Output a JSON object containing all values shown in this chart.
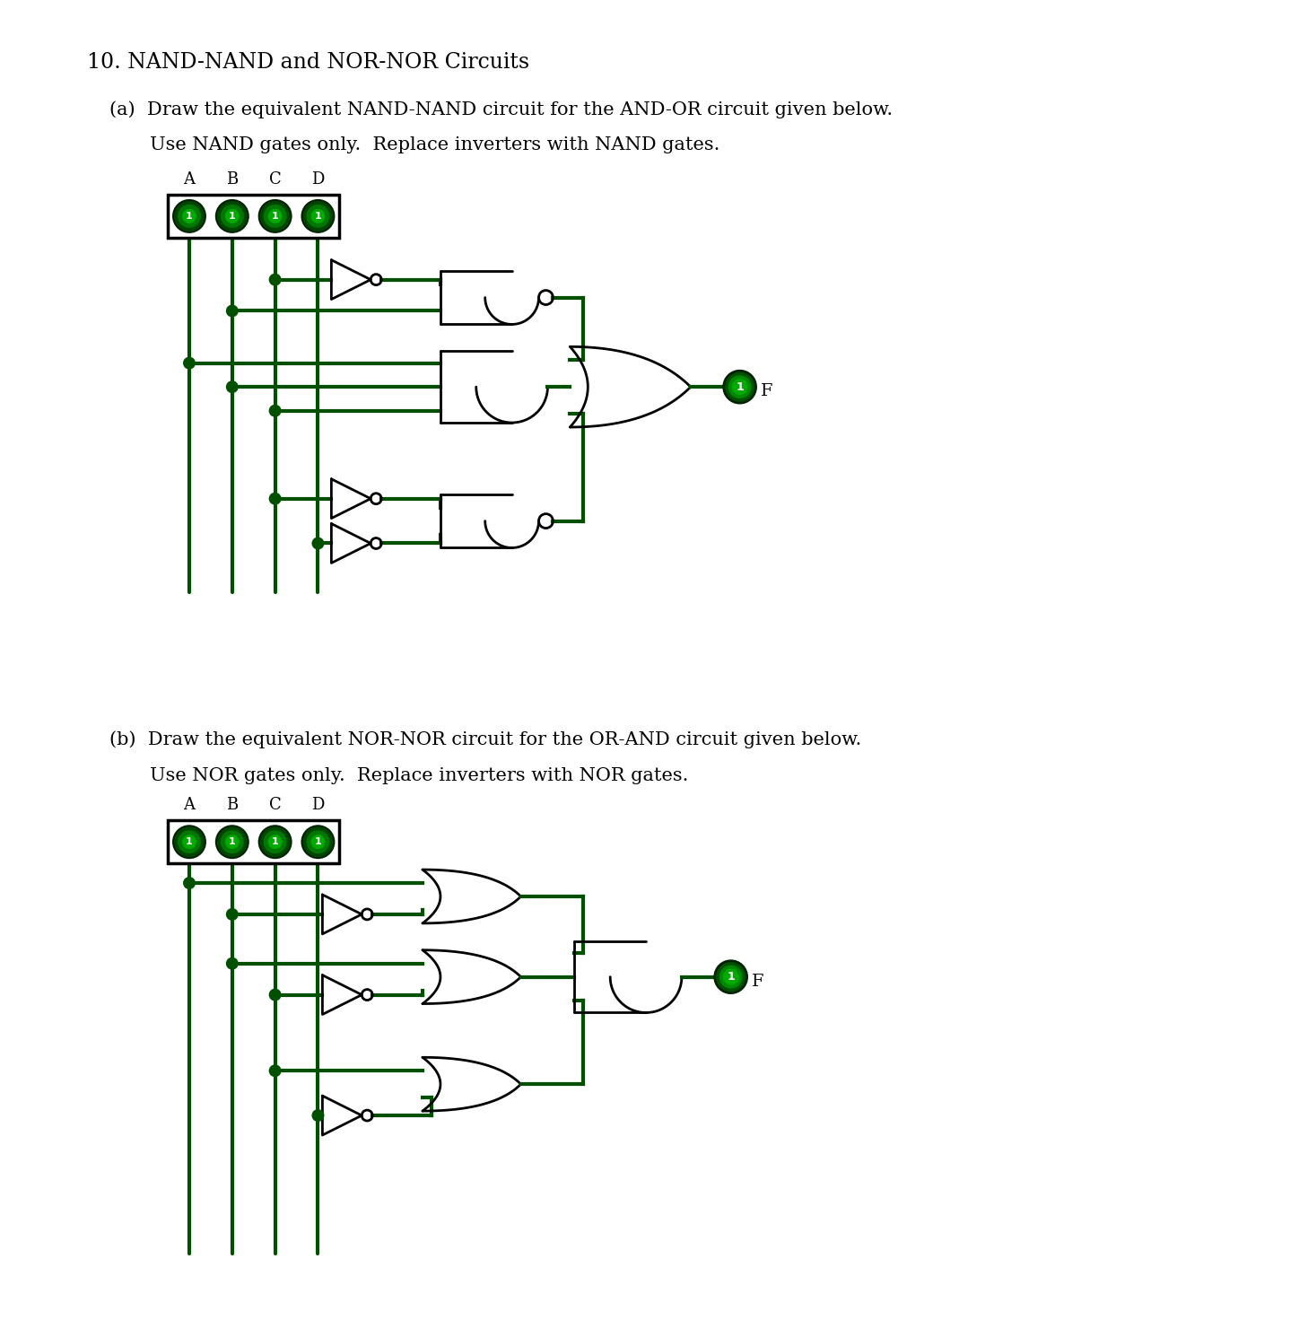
{
  "title": "10. NAND-NAND and NOR-NOR Circuits",
  "part_a_line1": "(a)  Draw the equivalent NAND-NAND circuit for the AND-OR circuit given below.",
  "part_a_line2": "Use NAND gates only.  Replace inverters with NAND gates.",
  "part_b_line1": "(b)  Draw the equivalent NOR-NOR circuit for the OR-AND circuit given below.",
  "part_b_line2": "Use NOR gates only.  Replace inverters with NOR gates.",
  "wire_color": "#005000",
  "gate_color": "#000000",
  "bg_color": "#ffffff",
  "text_color": "#000000",
  "ind_dark": "#004400",
  "ind_mid": "#007000",
  "ind_light": "#00aa00"
}
